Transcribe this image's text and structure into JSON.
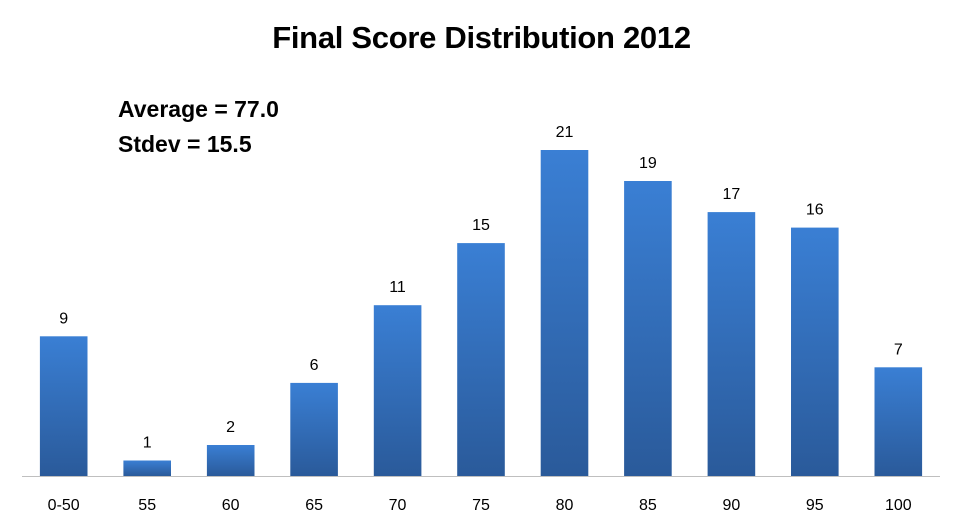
{
  "chart_data": {
    "type": "bar",
    "title": "Final Score Distribution 2012",
    "annotations": [
      "Average = 77.0",
      "Stdev = 15.5"
    ],
    "categories": [
      "0-50",
      "55",
      "60",
      "65",
      "70",
      "75",
      "80",
      "85",
      "90",
      "95",
      "100"
    ],
    "values": [
      9,
      1,
      2,
      6,
      11,
      15,
      21,
      19,
      17,
      16,
      7
    ],
    "ylim": [
      0,
      21
    ],
    "grid": false,
    "legend": "none",
    "colors": {
      "bar_top": "#3a7fd4",
      "bar_bottom": "#2a5a9a",
      "axis": "#bfbfbf"
    }
  }
}
